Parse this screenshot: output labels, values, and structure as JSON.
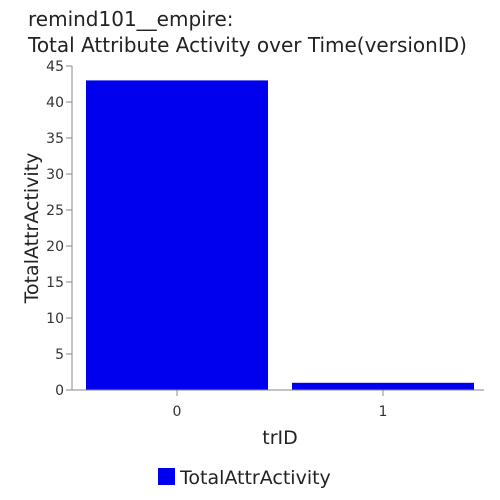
{
  "chart_data": {
    "type": "bar",
    "title": [
      "remind101__empire:",
      "Total Attribute Activity over Time(versionID)"
    ],
    "categories": [
      "0",
      "1"
    ],
    "series": [
      {
        "name": "TotalAttrActivity",
        "values": [
          43,
          1
        ],
        "color": "#0000ee"
      }
    ],
    "xlabel": "trID",
    "ylabel": "TotalAttrActivity",
    "ylim": [
      0,
      45
    ],
    "yticks": [
      0,
      5,
      10,
      15,
      20,
      25,
      30,
      35,
      40,
      45
    ],
    "grid": false,
    "legend": "bottom-center"
  }
}
